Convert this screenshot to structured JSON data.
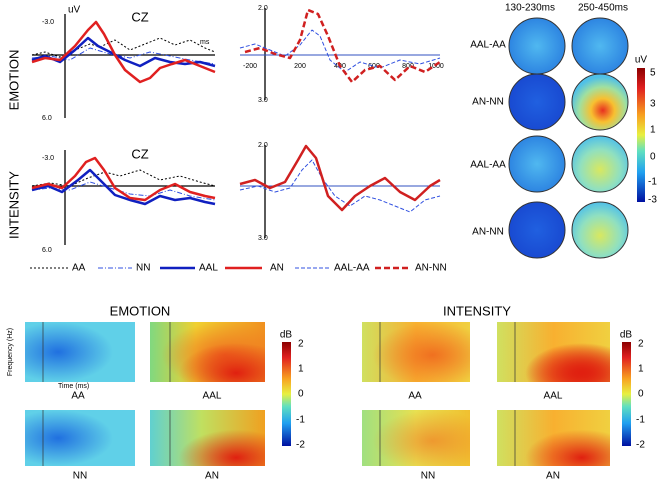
{
  "top": {
    "row_labels": [
      "EMOTION",
      "INTENSITY"
    ],
    "erp": [
      {
        "unit": "uV",
        "electrode": "CZ",
        "y_top": "-3.0",
        "y_bottom": "6.0",
        "x_unit": "ms"
      },
      {
        "electrode": "CZ",
        "y_top": "-3.0",
        "y_bottom": "6.0"
      }
    ],
    "diff": [
      {
        "y_top": "2.0",
        "y_bottom": "3.0",
        "x_ticks": [
          "-200",
          "200",
          "400",
          "600",
          "800",
          "1000"
        ]
      },
      {
        "y_top": "2.0",
        "y_bottom": "3.0"
      }
    ],
    "topo": {
      "columns": [
        "130-230ms",
        "250-450ms"
      ],
      "rows": [
        "AAL-AA",
        "AN-NN",
        "AAL-AA",
        "AN-NN"
      ],
      "colorbar": {
        "unit": "uV",
        "ticks": [
          "5",
          "3",
          "1",
          "0",
          "-1",
          "-3"
        ]
      }
    },
    "legend": [
      "AA",
      "NN",
      "AAL",
      "AN",
      "AAL-AA",
      "AN-NN"
    ]
  },
  "bottom": {
    "y_label": "Frequency (Hz)",
    "x_label": "Time (ms)",
    "panels": [
      {
        "title": "EMOTION",
        "labels": [
          "AA",
          "AAL",
          "NN",
          "AN"
        ],
        "colorbar": {
          "unit": "dB",
          "ticks": [
            "2",
            "1",
            "0",
            "-1",
            "-2"
          ]
        }
      },
      {
        "title": "INTENSITY",
        "labels": [
          "AA",
          "AAL",
          "NN",
          "AN"
        ],
        "colorbar": {
          "unit": "dB",
          "ticks": [
            "2",
            "1",
            "0",
            "-1",
            "-2"
          ]
        }
      }
    ]
  }
}
